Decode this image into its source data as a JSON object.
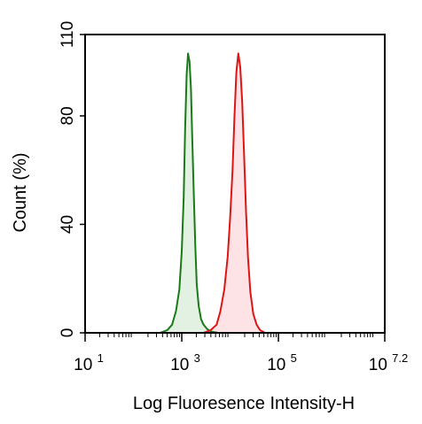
{
  "chart_data": {
    "type": "area",
    "title": "",
    "xlabel": "Log Fluoresence Intensity-H",
    "ylabel": "Count  (%)",
    "x_scale": "log10",
    "xlim": [
      1,
      7.2
    ],
    "ylim": [
      0,
      110
    ],
    "x_ticks": [
      {
        "base": "10",
        "exp": "1",
        "value": 1
      },
      {
        "base": "10",
        "exp": "3",
        "value": 3
      },
      {
        "base": "10",
        "exp": "5",
        "value": 5
      },
      {
        "base": "10",
        "exp": "7.2",
        "value": 7.2
      }
    ],
    "y_ticks": [
      "0",
      "40",
      "80",
      "110"
    ],
    "grid": false,
    "legend": "none",
    "series": [
      {
        "color": "#1a7a1a",
        "fill": "#e3f1e3",
        "x": [
          2.55,
          2.7,
          2.8,
          2.88,
          2.95,
          3.0,
          3.04,
          3.07,
          3.1,
          3.13,
          3.16,
          3.19,
          3.22,
          3.25,
          3.28,
          3.31,
          3.35,
          3.4,
          3.45,
          3.52,
          3.6,
          3.75
        ],
        "y": [
          0,
          1,
          3,
          8,
          16,
          30,
          50,
          75,
          95,
          103,
          100,
          90,
          70,
          50,
          32,
          18,
          10,
          5,
          3,
          1.5,
          0.5,
          0
        ]
      },
      {
        "color": "#dd1515",
        "fill": "#fde3e6",
        "x": [
          3.45,
          3.6,
          3.72,
          3.8,
          3.88,
          3.95,
          4.0,
          4.05,
          4.09,
          4.13,
          4.17,
          4.21,
          4.25,
          4.29,
          4.33,
          4.37,
          4.42,
          4.48,
          4.55,
          4.62,
          4.72
        ],
        "y": [
          0,
          1,
          3,
          8,
          16,
          28,
          42,
          60,
          80,
          96,
          103,
          98,
          85,
          65,
          45,
          28,
          15,
          7,
          3,
          1,
          0
        ]
      }
    ]
  }
}
